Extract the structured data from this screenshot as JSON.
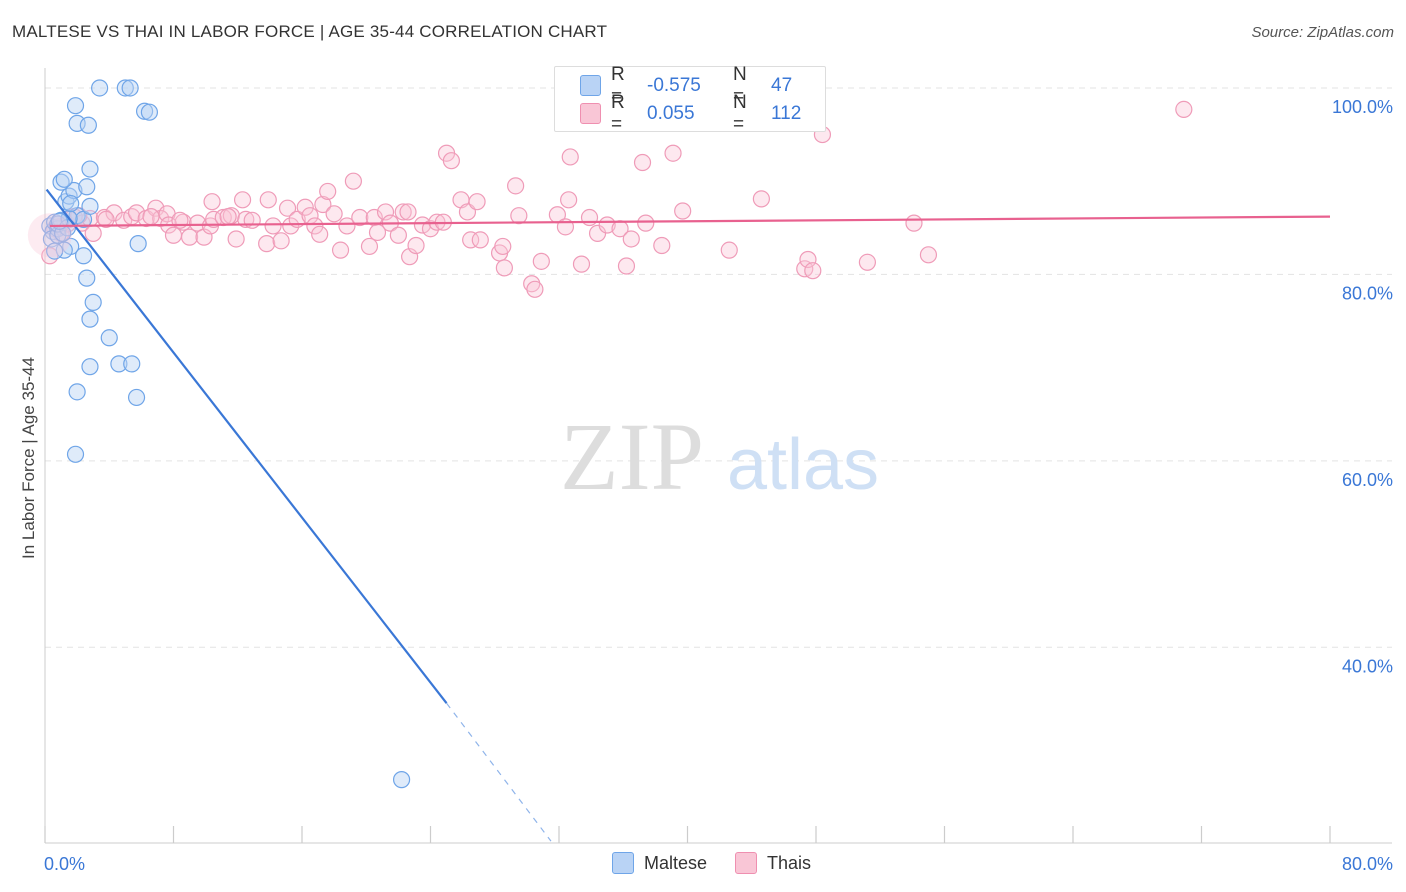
{
  "title": "MALTESE VS THAI IN LABOR FORCE | AGE 35-44 CORRELATION CHART",
  "source": "Source: ZipAtlas.com",
  "watermark": {
    "zip": "ZIP",
    "atlas": "atlas"
  },
  "legend": {
    "r_label": "R =",
    "n_label": "N =",
    "rows": [
      {
        "name": "Maltese",
        "r": "-0.575",
        "n": "47",
        "color": "#6fa5e8",
        "fill": "#b9d3f5"
      },
      {
        "name": "Thais",
        "r": "0.055",
        "n": "112",
        "color": "#ef8fb0",
        "fill": "#f9c6d6"
      }
    ]
  },
  "chart_data": {
    "type": "scatter",
    "xlabel": "",
    "ylabel": "In Labor Force | Age 35-44",
    "xlim": [
      0,
      80
    ],
    "ylim": [
      19,
      103
    ],
    "x_tick_labels": [
      "0.0%",
      "80.0%"
    ],
    "y_ticks": [
      40,
      60,
      80,
      100
    ],
    "y_tick_labels": [
      "40.0%",
      "60.0%",
      "80.0%",
      "100.0%"
    ],
    "grid": true,
    "series": [
      {
        "name": "Maltese",
        "color": "#3a77d6",
        "points": [
          [
            0.3,
            85.2
          ],
          [
            0.5,
            84.6
          ],
          [
            0.4,
            83.8
          ],
          [
            0.6,
            85.6
          ],
          [
            0.8,
            84.9
          ],
          [
            1.0,
            85.8
          ],
          [
            1.3,
            87.8
          ],
          [
            1.5,
            88.4
          ],
          [
            1.8,
            89.0
          ],
          [
            1.0,
            89.9
          ],
          [
            1.2,
            90.2
          ],
          [
            2.6,
            89.4
          ],
          [
            2.8,
            91.3
          ],
          [
            2.0,
            86.3
          ],
          [
            2.4,
            85.9
          ],
          [
            2.8,
            87.3
          ],
          [
            1.6,
            83.0
          ],
          [
            1.2,
            82.6
          ],
          [
            0.8,
            84.2
          ],
          [
            0.6,
            82.5
          ],
          [
            2.4,
            82.0
          ],
          [
            2.6,
            79.6
          ],
          [
            2.8,
            75.2
          ],
          [
            2.8,
            70.1
          ],
          [
            2.0,
            67.4
          ],
          [
            1.9,
            60.7
          ],
          [
            3.0,
            77.0
          ],
          [
            4.0,
            73.2
          ],
          [
            4.6,
            70.4
          ],
          [
            5.4,
            70.4
          ],
          [
            5.7,
            66.8
          ],
          [
            5.8,
            83.3
          ],
          [
            6.2,
            97.5
          ],
          [
            6.5,
            97.4
          ],
          [
            5.0,
            100.0
          ],
          [
            5.3,
            100.0
          ],
          [
            3.4,
            100.0
          ],
          [
            1.9,
            98.1
          ],
          [
            2.0,
            96.2
          ],
          [
            2.7,
            96.0
          ],
          [
            0.8,
            85.4
          ],
          [
            1.5,
            86.0
          ],
          [
            22.2,
            25.8
          ],
          [
            1.4,
            85.0
          ],
          [
            1.1,
            84.4
          ],
          [
            0.9,
            85.7
          ],
          [
            1.6,
            87.6
          ]
        ],
        "trend": {
          "x0": 0.1,
          "y0": 89.1,
          "x1": 25.0,
          "y1": 34.0,
          "dash_x1": 31.5,
          "dash_y1": 19.2
        }
      },
      {
        "name": "Thais",
        "color": "#e8618f",
        "points": [
          [
            0.3,
            82.0
          ],
          [
            0.6,
            84.9
          ],
          [
            1.0,
            84.4
          ],
          [
            1.4,
            85.4
          ],
          [
            1.8,
            86.2
          ],
          [
            2.3,
            85.5
          ],
          [
            2.8,
            86.0
          ],
          [
            3.0,
            84.4
          ],
          [
            3.7,
            86.1
          ],
          [
            4.3,
            86.6
          ],
          [
            4.9,
            85.8
          ],
          [
            5.4,
            86.2
          ],
          [
            5.7,
            86.6
          ],
          [
            6.3,
            86.0
          ],
          [
            6.9,
            87.1
          ],
          [
            7.2,
            86.0
          ],
          [
            7.6,
            86.5
          ],
          [
            7.7,
            85.3
          ],
          [
            8.0,
            84.2
          ],
          [
            8.6,
            85.6
          ],
          [
            9.0,
            84.0
          ],
          [
            9.5,
            85.5
          ],
          [
            9.9,
            84.0
          ],
          [
            10.3,
            85.2
          ],
          [
            10.5,
            85.9
          ],
          [
            10.4,
            87.8
          ],
          [
            11.1,
            86.1
          ],
          [
            11.6,
            86.3
          ],
          [
            11.9,
            83.8
          ],
          [
            12.3,
            88.0
          ],
          [
            12.5,
            85.9
          ],
          [
            12.9,
            85.8
          ],
          [
            13.8,
            83.3
          ],
          [
            13.9,
            88.0
          ],
          [
            14.2,
            85.2
          ],
          [
            14.7,
            83.6
          ],
          [
            15.1,
            87.1
          ],
          [
            15.3,
            85.2
          ],
          [
            15.7,
            85.9
          ],
          [
            16.2,
            87.2
          ],
          [
            16.5,
            86.3
          ],
          [
            16.8,
            85.2
          ],
          [
            17.3,
            87.5
          ],
          [
            17.6,
            88.9
          ],
          [
            18.0,
            86.5
          ],
          [
            18.4,
            82.6
          ],
          [
            18.8,
            85.2
          ],
          [
            19.2,
            90.0
          ],
          [
            19.6,
            86.1
          ],
          [
            20.2,
            83.0
          ],
          [
            20.5,
            86.1
          ],
          [
            20.7,
            84.5
          ],
          [
            21.2,
            86.7
          ],
          [
            21.5,
            85.5
          ],
          [
            22.0,
            84.2
          ],
          [
            22.3,
            86.7
          ],
          [
            22.6,
            86.7
          ],
          [
            22.7,
            81.9
          ],
          [
            23.1,
            83.1
          ],
          [
            23.5,
            85.3
          ],
          [
            24.0,
            84.9
          ],
          [
            24.4,
            85.6
          ],
          [
            24.8,
            85.6
          ],
          [
            25.0,
            93.0
          ],
          [
            25.3,
            92.2
          ],
          [
            25.9,
            88.0
          ],
          [
            26.3,
            86.7
          ],
          [
            26.5,
            83.7
          ],
          [
            26.9,
            87.8
          ],
          [
            27.1,
            83.7
          ],
          [
            28.3,
            82.3
          ],
          [
            28.5,
            83.0
          ],
          [
            28.6,
            80.7
          ],
          [
            29.3,
            89.5
          ],
          [
            29.5,
            86.3
          ],
          [
            30.3,
            79.0
          ],
          [
            30.5,
            78.4
          ],
          [
            30.9,
            81.4
          ],
          [
            31.9,
            86.4
          ],
          [
            32.4,
            85.1
          ],
          [
            32.6,
            88.0
          ],
          [
            32.7,
            92.6
          ],
          [
            33.4,
            81.1
          ],
          [
            33.9,
            86.1
          ],
          [
            34.4,
            84.4
          ],
          [
            35.0,
            85.3
          ],
          [
            35.8,
            84.9
          ],
          [
            36.2,
            80.9
          ],
          [
            36.5,
            83.8
          ],
          [
            37.2,
            92.0
          ],
          [
            37.4,
            85.5
          ],
          [
            38.4,
            83.1
          ],
          [
            39.1,
            93.0
          ],
          [
            39.7,
            86.8
          ],
          [
            42.6,
            82.6
          ],
          [
            44.6,
            88.1
          ],
          [
            47.3,
            80.6
          ],
          [
            47.5,
            81.6
          ],
          [
            47.8,
            80.4
          ],
          [
            48.4,
            95.0
          ],
          [
            51.2,
            81.3
          ],
          [
            54.1,
            85.5
          ],
          [
            55.0,
            82.1
          ],
          [
            70.9,
            97.7
          ],
          [
            0.9,
            85.1
          ],
          [
            1.5,
            85.9
          ],
          [
            2.1,
            86.3
          ],
          [
            3.8,
            85.9
          ],
          [
            6.6,
            86.2
          ],
          [
            8.4,
            85.8
          ],
          [
            11.4,
            86.2
          ],
          [
            17.1,
            84.3
          ]
        ],
        "trend": {
          "x0": 0.3,
          "y0": 85.2,
          "x1": 80.0,
          "y1": 86.2
        }
      }
    ]
  }
}
